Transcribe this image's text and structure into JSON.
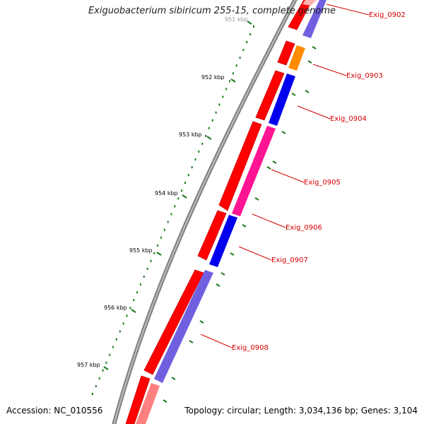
{
  "title": "Exiguobacterium sibiricum 255-15, complete genome",
  "footer": {
    "accession": "Accession: NC_010556",
    "topology": "Topology: circular; Length: 3,034,136 bp; Genes: 3,104"
  },
  "scale_ticks": [
    {
      "label": "951 kbp",
      "faded": true
    },
    {
      "label": "952 kbp"
    },
    {
      "label": "953 kbp"
    },
    {
      "label": "954 kbp"
    },
    {
      "label": "955 kbp"
    },
    {
      "label": "956 kbp"
    },
    {
      "label": "957 kbp"
    }
  ],
  "gene_labels": [
    "Exig_0902",
    "Exig_0903",
    "Exig_0904",
    "Exig_0905",
    "Exig_0906",
    "Exig_0907",
    "Exig_0908"
  ],
  "colors": {
    "backbone": "#808080",
    "forward_strand": "#ff0000",
    "reverse_strand": "#0000ee",
    "pink": "#ff1493",
    "orange": "#ff8c00",
    "tick": "#1a7a1a",
    "label": "#d40000"
  }
}
